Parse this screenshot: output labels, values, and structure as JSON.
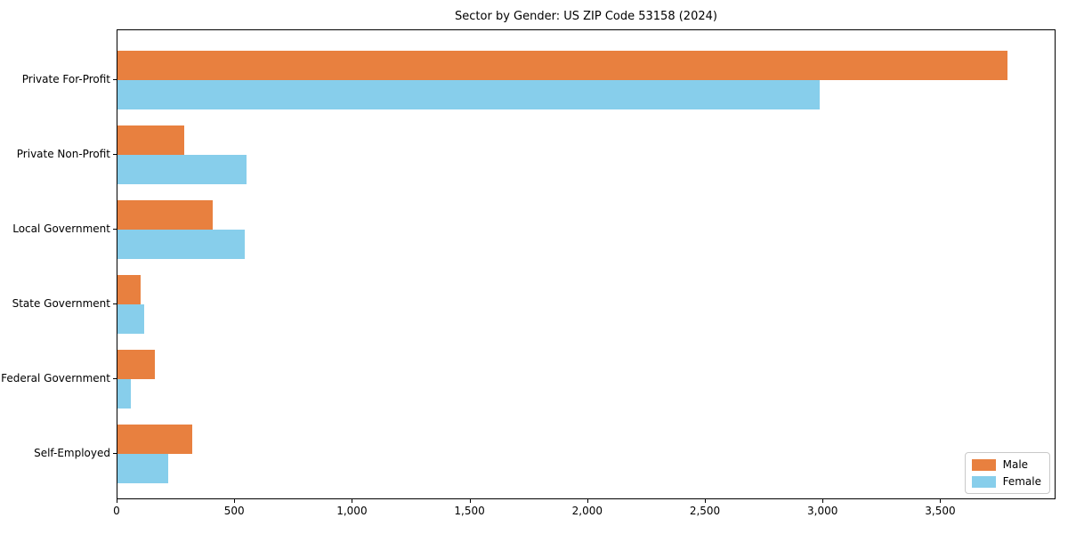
{
  "window": {
    "title": "Sector by Gender: US ZIP Code 53158 (2024)"
  },
  "chart_data": {
    "type": "bar",
    "orientation": "horizontal",
    "title": "Sector by Gender: US ZIP Code 53158 (2024)",
    "categories": [
      "Private For-Profit",
      "Private Non-Profit",
      "Local Government",
      "State Government",
      "Federal Government",
      "Self-Employed"
    ],
    "series": [
      {
        "name": "Male",
        "color": "#e8803f",
        "values": [
          3790,
          285,
          405,
          100,
          160,
          320
        ]
      },
      {
        "name": "Female",
        "color": "#87ceeb",
        "values": [
          2990,
          550,
          540,
          115,
          55,
          215
        ]
      }
    ],
    "xlabel": "",
    "ylabel": "",
    "xlim": [
      0,
      3990
    ],
    "xticks": [
      0,
      500,
      1000,
      1500,
      2000,
      2500,
      3000,
      3500
    ],
    "xtick_labels": [
      "0",
      "500",
      "1,000",
      "1,500",
      "2,000",
      "2,500",
      "3,000",
      "3,500"
    ],
    "grid": false,
    "background": "#ffffff",
    "spine_color": "#000000",
    "legend": {
      "position": "lower right",
      "entries": [
        "Male",
        "Female"
      ]
    }
  }
}
